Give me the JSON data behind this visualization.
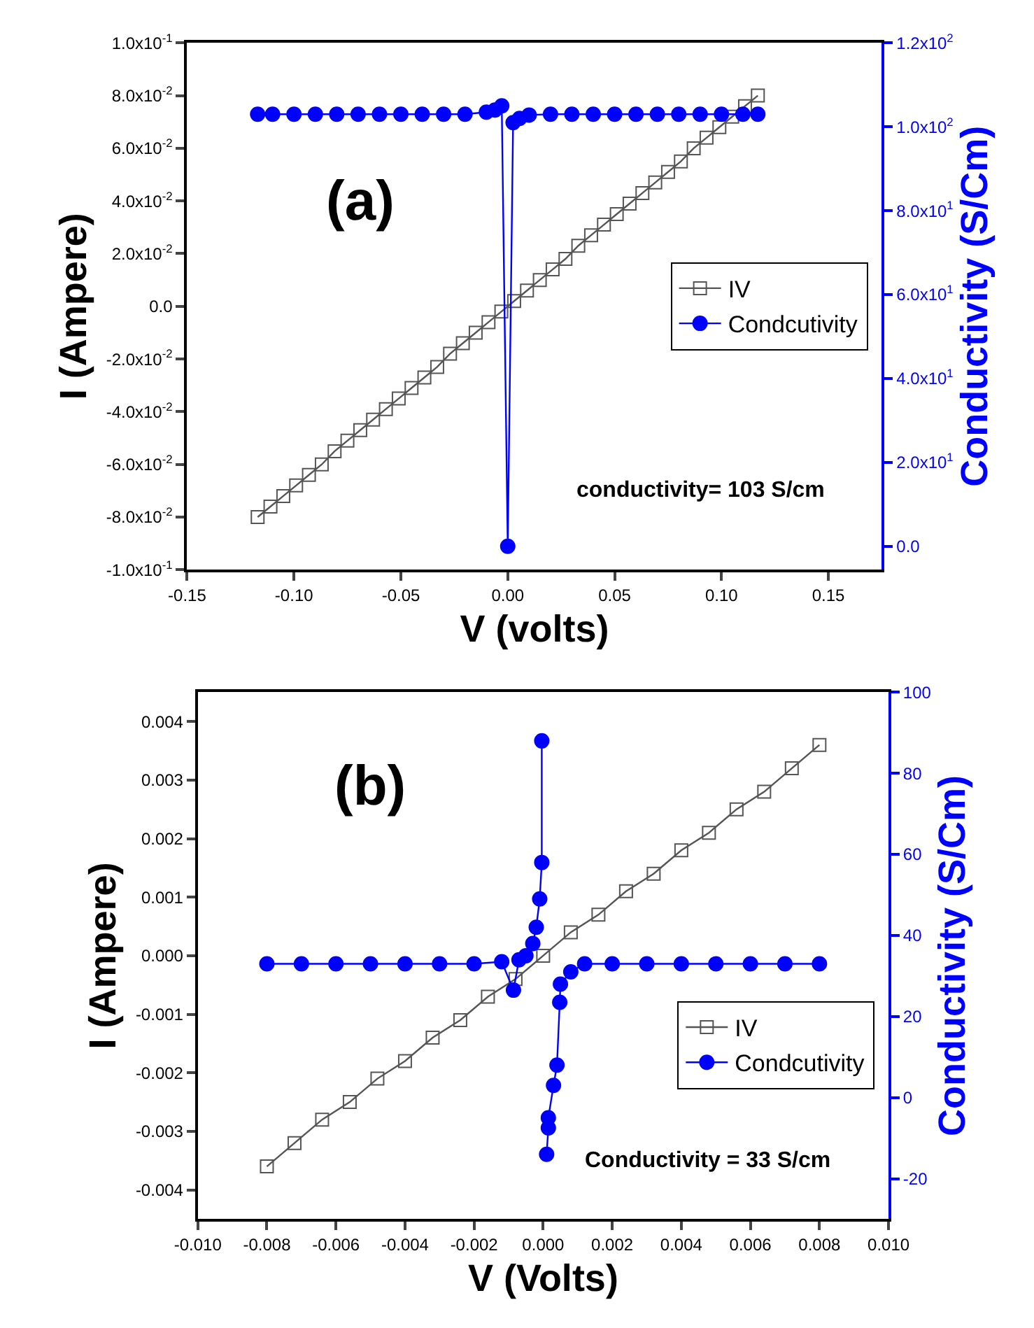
{
  "chart_data": [
    {
      "type": "line",
      "xlabel": "V (volts)",
      "ylabel": "I (Ampere)",
      "y2label": "Conductivity (S/Cm)",
      "annotations": [
        "(a)",
        "conductivity= 103 S/cm"
      ],
      "xlim": [
        -0.15,
        0.175
      ],
      "xticks": [
        {
          "value": -0.15,
          "label": "-0.15"
        },
        {
          "value": -0.1,
          "label": "-0.10"
        },
        {
          "value": -0.05,
          "label": "-0.05"
        },
        {
          "value": 0,
          "label": "0.00"
        },
        {
          "value": 0.05,
          "label": "0.05"
        },
        {
          "value": 0.1,
          "label": "0.10"
        },
        {
          "value": 0.15,
          "label": "0.15"
        }
      ],
      "ylim": [
        -0.1,
        0.1
      ],
      "yticks": [
        {
          "value": -0.1,
          "label": "-1.0x10$^{-1}$"
        },
        {
          "value": -0.08,
          "label": "-8.0x10$^{-2}$"
        },
        {
          "value": -0.06,
          "label": "-6.0x10$^{-2}$"
        },
        {
          "value": -0.04,
          "label": "-4.0x10$^{-2}$"
        },
        {
          "value": -0.02,
          "label": "-2.0x10$^{-2}$"
        },
        {
          "value": 0,
          "label": "0.0"
        },
        {
          "value": 0.02,
          "label": "2.0x10$^{-2}$"
        },
        {
          "value": 0.04,
          "label": "4.0x10$^{-2}$"
        },
        {
          "value": 0.06,
          "label": "6.0x10$^{-2}$"
        },
        {
          "value": 0.08,
          "label": "8.0x10$^{-2}$"
        },
        {
          "value": 0.1,
          "label": "1.0x10$^{-1}$"
        }
      ],
      "y2lim": [
        -5.6,
        120
      ],
      "y2ticks": [
        {
          "value": 0,
          "label": "0.0"
        },
        {
          "value": 20,
          "label": "2.0x10$^{1}$"
        },
        {
          "value": 40,
          "label": "4.0x10$^{1}$"
        },
        {
          "value": 60,
          "label": "6.0x10$^{1}$"
        },
        {
          "value": 80,
          "label": "8.0x10$^{1}$"
        },
        {
          "value": 100,
          "label": "1.0x10$^{2}$"
        },
        {
          "value": 120,
          "label": "1.2x10$^{2}$"
        }
      ],
      "legend": "right",
      "line_style": "solid",
      "series": [
        {
          "name": "IV",
          "color": "#555555",
          "marker": "square",
          "x": [
            -0.117,
            -0.111,
            -0.105,
            -0.099,
            -0.093,
            -0.087,
            -0.081,
            -0.075,
            -0.069,
            -0.063,
            -0.057,
            -0.051,
            -0.045,
            -0.039,
            -0.033,
            -0.027,
            -0.021,
            -0.015,
            -0.009,
            -0.003,
            0.003,
            0.009,
            0.015,
            0.021,
            0.027,
            0.033,
            0.039,
            0.045,
            0.051,
            0.057,
            0.063,
            0.069,
            0.075,
            0.081,
            0.087,
            0.093,
            0.099,
            0.105,
            0.111,
            0.117
          ],
          "values": [
            -0.08,
            -0.076,
            -0.072,
            -0.068,
            -0.064,
            -0.06,
            -0.055,
            -0.051,
            -0.047,
            -0.043,
            -0.039,
            -0.035,
            -0.031,
            -0.027,
            -0.023,
            -0.018,
            -0.014,
            -0.01,
            -0.006,
            -0.002,
            0.002,
            0.006,
            0.01,
            0.014,
            0.018,
            0.023,
            0.027,
            0.031,
            0.035,
            0.039,
            0.043,
            0.047,
            0.051,
            0.055,
            0.06,
            0.064,
            0.068,
            0.072,
            0.076,
            0.08
          ]
        },
        {
          "name": "Condcutivity",
          "color": "#0000ff",
          "marker": "circle",
          "axis": "y2",
          "x": [
            -0.117,
            -0.11,
            -0.1,
            -0.09,
            -0.08,
            -0.07,
            -0.06,
            -0.05,
            -0.04,
            -0.03,
            -0.02,
            -0.01,
            -0.006,
            -0.0028,
            0.0,
            0.0025,
            0.0055,
            0.01,
            0.02,
            0.03,
            0.04,
            0.05,
            0.06,
            0.07,
            0.08,
            0.09,
            0.1,
            0.11,
            0.117
          ],
          "values": [
            103,
            103,
            103,
            103,
            103,
            103,
            103,
            103,
            103,
            103,
            103,
            103.5,
            104,
            105,
            0,
            101,
            102,
            102.8,
            103,
            103,
            103,
            103,
            103,
            103,
            103,
            103,
            103,
            103,
            103
          ]
        }
      ]
    },
    {
      "type": "line",
      "xlabel": "V (Volts)",
      "ylabel": "I (Ampere)",
      "y2label": "Conductivity (S/Cm)",
      "annotations": [
        "(b)",
        "Conductivity = 33 S/cm"
      ],
      "xlim": [
        -0.01,
        0.01
      ],
      "xticks": [
        {
          "value": -0.01,
          "label": "-0.010"
        },
        {
          "value": -0.008,
          "label": "-0.008"
        },
        {
          "value": -0.006,
          "label": "-0.006"
        },
        {
          "value": -0.004,
          "label": "-0.004"
        },
        {
          "value": -0.002,
          "label": "-0.002"
        },
        {
          "value": 0,
          "label": "0.000"
        },
        {
          "value": 0.002,
          "label": "0.002"
        },
        {
          "value": 0.004,
          "label": "0.004"
        },
        {
          "value": 0.006,
          "label": "0.006"
        },
        {
          "value": 0.008,
          "label": "0.008"
        },
        {
          "value": 0.01,
          "label": "0.010"
        }
      ],
      "ylim": [
        -0.0045,
        0.0045
      ],
      "yticks": [
        {
          "value": -0.004,
          "label": "-0.004"
        },
        {
          "value": -0.003,
          "label": "-0.003"
        },
        {
          "value": -0.002,
          "label": "-0.002"
        },
        {
          "value": -0.001,
          "label": "-0.001"
        },
        {
          "value": 0,
          "label": "0.000"
        },
        {
          "value": 0.001,
          "label": "0.001"
        },
        {
          "value": 0.002,
          "label": "0.002"
        },
        {
          "value": 0.003,
          "label": "0.003"
        },
        {
          "value": 0.004,
          "label": "0.004"
        }
      ],
      "y2lim": [
        -30,
        100
      ],
      "y2ticks": [
        -20,
        0,
        20,
        40,
        60,
        80,
        100
      ],
      "legend": "bottom right",
      "line_style": "solid",
      "series": [
        {
          "name": "IV",
          "color": "#555555",
          "marker": "square",
          "x": [
            -0.008,
            -0.0072,
            -0.0064,
            -0.0056,
            -0.0048,
            -0.004,
            -0.0032,
            -0.0024,
            -0.0016,
            -0.0008,
            0,
            0.0008,
            0.0016,
            0.0024,
            0.0032,
            0.004,
            0.0048,
            0.0056,
            0.0064,
            0.0072,
            0.008
          ],
          "values": [
            -0.0036,
            -0.0032,
            -0.0028,
            -0.0025,
            -0.0021,
            -0.0018,
            -0.0014,
            -0.0011,
            -0.0007,
            -0.0004,
            0.0,
            0.0004,
            0.0007,
            0.0011,
            0.0014,
            0.0018,
            0.0021,
            0.0025,
            0.0028,
            0.0032,
            0.0036
          ]
        },
        {
          "name": "Condcutivity",
          "color": "#0000ff",
          "marker": "circle",
          "axis": "y2",
          "x": [
            -0.008,
            -0.007,
            -0.006,
            -0.005,
            -0.004,
            -0.003,
            -0.002,
            -0.0012,
            -0.00086,
            -0.0007,
            -0.0005,
            -0.0003,
            -0.0002,
            -0.0001,
            -4e-05,
            -4e-05,
            3e-05,
            0.0001,
            0.00015,
            0.00015,
            0.0003,
            0.0004,
            0.00048,
            0.0005,
            0.0008,
            0.0012,
            0.002,
            0.003,
            0.004,
            0.005,
            0.006,
            0.007,
            0.008
          ],
          "values": [
            33,
            33,
            33,
            33,
            33,
            33,
            33,
            33.5,
            26.5,
            34,
            35,
            38,
            42,
            49,
            58,
            88,
            null,
            -14,
            -7.5,
            -5,
            3,
            8,
            23.5,
            28,
            31,
            33,
            33,
            33,
            33,
            33,
            33,
            33,
            33
          ]
        }
      ]
    }
  ]
}
